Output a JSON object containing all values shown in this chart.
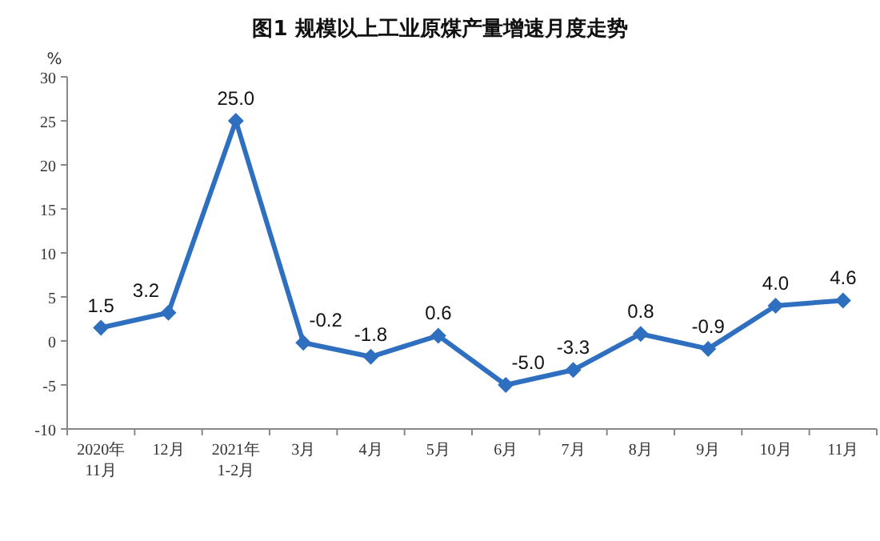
{
  "chart_data": {
    "type": "line",
    "title": "图1  规模以上工业原煤产量增速月度走势",
    "ylabel": "%",
    "categories": [
      "2020年\n11月",
      "12月",
      "2021年\n1-2月",
      "3月",
      "4月",
      "5月",
      "6月",
      "7月",
      "8月",
      "9月",
      "10月",
      "11月"
    ],
    "values": [
      1.5,
      3.2,
      25.0,
      -0.2,
      -1.8,
      0.6,
      -5.0,
      -3.3,
      0.8,
      -0.9,
      4.0,
      4.6
    ],
    "color": "#2e6fc0",
    "ylim": [
      -10,
      30
    ],
    "yticks": [
      -10,
      -5,
      0,
      5,
      10,
      15,
      20,
      25,
      30
    ],
    "marker": "diamond",
    "value_labels": [
      "1.5",
      "3.2",
      "25.0",
      "-0.2",
      "-1.8",
      "0.6",
      "-5.0",
      "-3.3",
      "0.8",
      "-0.9",
      "4.0",
      "4.6"
    ]
  }
}
